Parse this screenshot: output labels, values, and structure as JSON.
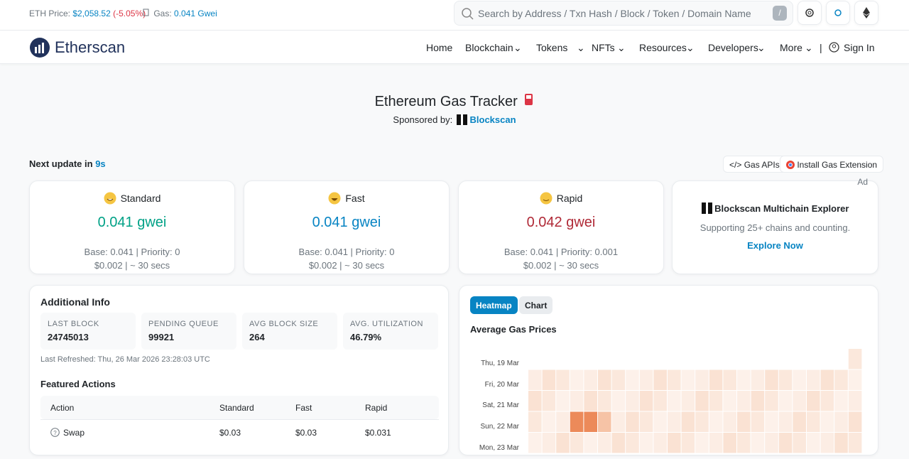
{
  "topbar": {
    "eth_price_label": "ETH Price:",
    "eth_price": "$2,058.52",
    "eth_change": "(-5.05%)",
    "gas_label": "Gas:",
    "gas": "0.041 Gwei",
    "search_placeholder": "Search by Address / Txn Hash / Block / Token / Domain Name",
    "search_key": "/"
  },
  "nav": {
    "brand": "Etherscan",
    "items": [
      "Home",
      "Blockchain",
      "Tokens",
      "NFTs",
      "Resources",
      "Developers",
      "More"
    ],
    "sign_in": "Sign In"
  },
  "header": {
    "title": "Ethereum Gas Tracker",
    "sponsored_label": "Sponsored by:",
    "sponsor": "Blockscan"
  },
  "update": {
    "label": "Next update in",
    "value": "9s",
    "buttons": [
      "Gas APIs",
      "Install Gas Extension"
    ]
  },
  "cards": [
    {
      "name": "Standard",
      "price": "0.041 gwei",
      "base_priority": "Base: 0.041 | Priority: 0",
      "cost_time": "$0.002 | ~ 30 secs"
    },
    {
      "name": "Fast",
      "price": "0.041 gwei",
      "base_priority": "Base: 0.041 | Priority: 0",
      "cost_time": "$0.002 | ~ 30 secs"
    },
    {
      "name": "Rapid",
      "price": "0.042 gwei",
      "base_priority": "Base: 0.041 | Priority: 0.001",
      "cost_time": "$0.002 | ~ 30 secs"
    }
  ],
  "ad": {
    "label": "Ad",
    "title": "Blockscan Multichain Explorer",
    "text": "Supporting 25+ chains and counting.",
    "link": "Explore Now"
  },
  "additional_info": {
    "title": "Additional Info",
    "stats": [
      {
        "label": "LAST BLOCK",
        "value": "24745013"
      },
      {
        "label": "PENDING QUEUE",
        "value": "99921"
      },
      {
        "label": "AVG BLOCK SIZE",
        "value": "264"
      },
      {
        "label": "AVG. UTILIZATION",
        "value": "46.79%"
      }
    ],
    "last_refreshed": "Last Refreshed: Thu, 26 Mar 2026 23:28:03 UTC"
  },
  "featured_actions": {
    "title": "Featured Actions",
    "columns": [
      "Action",
      "Standard",
      "Fast",
      "Rapid"
    ],
    "rows": [
      [
        "Swap",
        "$0.03",
        "$0.03",
        "$0.031"
      ]
    ]
  },
  "gas_prices": {
    "tabs": [
      "Heatmap",
      "Chart"
    ],
    "title": "Average Gas Prices",
    "days": [
      "Thu, 19 Mar",
      "Fri, 20 Mar",
      "Sat, 21 Mar",
      "Sun, 22 Mar",
      "Mon, 23 Mar"
    ]
  }
}
